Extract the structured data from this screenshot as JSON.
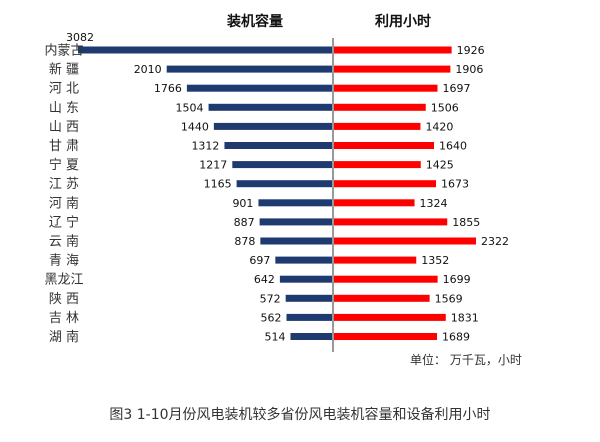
{
  "chart_data": {
    "type": "bar",
    "layout": "butterfly",
    "categories": [
      "内蒙古",
      "新 疆",
      "河 北",
      "山 东",
      "山 西",
      "甘 肃",
      "宁 夏",
      "江 苏",
      "河 南",
      "辽 宁",
      "云 南",
      "青 海",
      "黑龙江",
      "陕 西",
      "吉 林",
      "湖 南"
    ],
    "series": [
      {
        "name": "装机容量",
        "values": [
          3082,
          2010,
          1766,
          1504,
          1440,
          1312,
          1217,
          1165,
          901,
          887,
          878,
          697,
          642,
          572,
          562,
          514
        ],
        "color": "#1f3a6e",
        "direction": "left"
      },
      {
        "name": "利用小时",
        "values": [
          1926,
          1906,
          1697,
          1506,
          1420,
          1640,
          1425,
          1673,
          1324,
          1855,
          2322,
          1352,
          1699,
          1569,
          1831,
          1689
        ],
        "color": "#ff0000",
        "direction": "right"
      }
    ],
    "axis_color": "#999999",
    "unit_label": "单位：  万千瓦，小时",
    "caption": "图3 1-10月份风电装机较多省份风电装机容量和设备利用小时"
  }
}
